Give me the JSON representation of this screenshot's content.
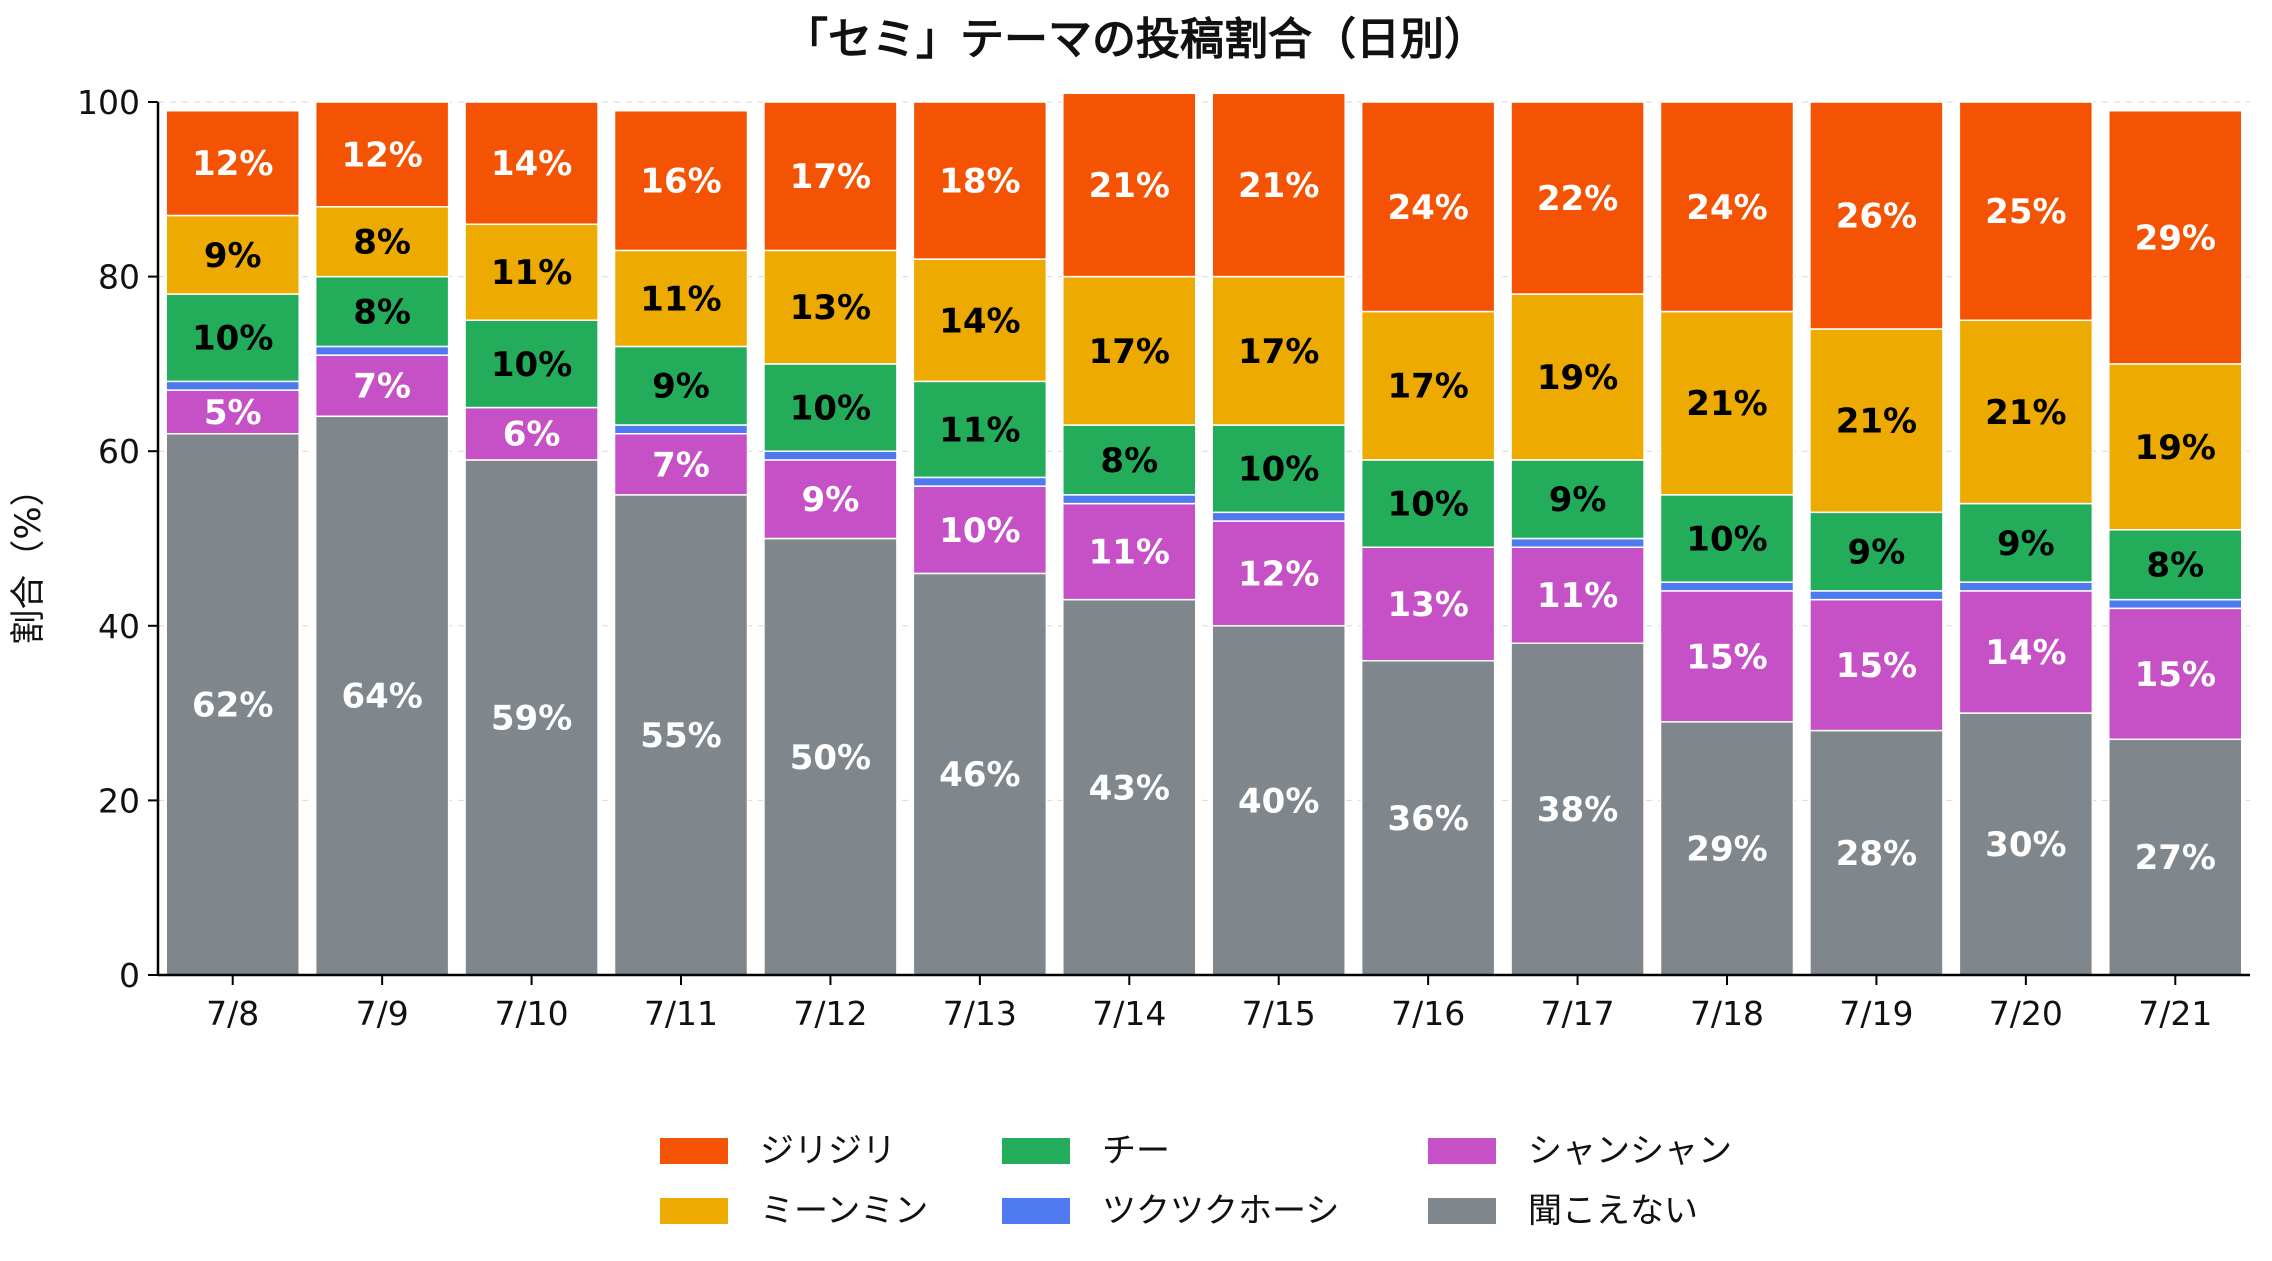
{
  "chart_data": {
    "type": "bar",
    "stacked": true,
    "title": "「セミ」テーマの投稿割合（日別）",
    "xlabel": "",
    "ylabel": "割合（%）",
    "ylim": [
      0,
      100
    ],
    "yticks": [
      0,
      20,
      40,
      60,
      80,
      100
    ],
    "grid": true,
    "legend_position": "bottom",
    "categories": [
      "7/8",
      "7/9",
      "7/10",
      "7/11",
      "7/12",
      "7/13",
      "7/14",
      "7/15",
      "7/16",
      "7/17",
      "7/18",
      "7/19",
      "7/20",
      "7/21"
    ],
    "series": [
      {
        "name": "聞こえない",
        "color": "#7f868c",
        "label_color": "#ffffff",
        "values": [
          62,
          64,
          59,
          55,
          50,
          46,
          43,
          40,
          36,
          38,
          29,
          28,
          30,
          27
        ],
        "labels": [
          "62%",
          "64%",
          "59%",
          "55%",
          "50%",
          "46%",
          "43%",
          "40%",
          "36%",
          "38%",
          "29%",
          "28%",
          "30%",
          "27%"
        ]
      },
      {
        "name": "シャンシャン",
        "color": "#c651c6",
        "label_color": "#ffffff",
        "values": [
          5,
          7,
          6,
          7,
          9,
          10,
          11,
          12,
          13,
          11,
          15,
          15,
          14,
          15
        ],
        "labels": [
          "5%",
          "7%",
          "6%",
          "7%",
          "9%",
          "10%",
          "11%",
          "12%",
          "13%",
          "11%",
          "15%",
          "15%",
          "14%",
          "15%"
        ]
      },
      {
        "name": "ツクツクホーシ",
        "color": "#4e79ef",
        "label_color": "#ffffff",
        "values": [
          1,
          1,
          0,
          1,
          1,
          1,
          1,
          1,
          0,
          1,
          1,
          1,
          1,
          1
        ],
        "labels": []
      },
      {
        "name": "チー",
        "color": "#23ad5b",
        "label_color": "#000000",
        "values": [
          10,
          8,
          10,
          9,
          10,
          11,
          8,
          10,
          10,
          9,
          10,
          9,
          9,
          8
        ],
        "labels": [
          "10%",
          "8%",
          "10%",
          "9%",
          "10%",
          "11%",
          "8%",
          "10%",
          "10%",
          "9%",
          "10%",
          "9%",
          "9%",
          "8%"
        ]
      },
      {
        "name": "ミーンミン",
        "color": "#edaa00",
        "label_color": "#000000",
        "values": [
          9,
          8,
          11,
          11,
          13,
          14,
          17,
          17,
          17,
          19,
          21,
          21,
          21,
          19
        ],
        "labels": [
          "9%",
          "8%",
          "11%",
          "11%",
          "13%",
          "14%",
          "17%",
          "17%",
          "17%",
          "19%",
          "21%",
          "21%",
          "21%",
          "19%"
        ]
      },
      {
        "name": "ジリジリ",
        "color": "#f55304",
        "label_color": "#ffffff",
        "values": [
          12,
          12,
          14,
          16,
          17,
          18,
          21,
          21,
          24,
          22,
          24,
          26,
          25,
          29
        ],
        "labels": [
          "12%",
          "12%",
          "14%",
          "16%",
          "17%",
          "18%",
          "21%",
          "21%",
          "24%",
          "22%",
          "24%",
          "26%",
          "25%",
          "29%"
        ]
      }
    ],
    "legend": {
      "columns": [
        [
          "ジリジリ",
          "ミーンミン"
        ],
        [
          "チー",
          "ツクツクホーシ"
        ],
        [
          "シャンシャン",
          "聞こえない"
        ]
      ]
    }
  }
}
